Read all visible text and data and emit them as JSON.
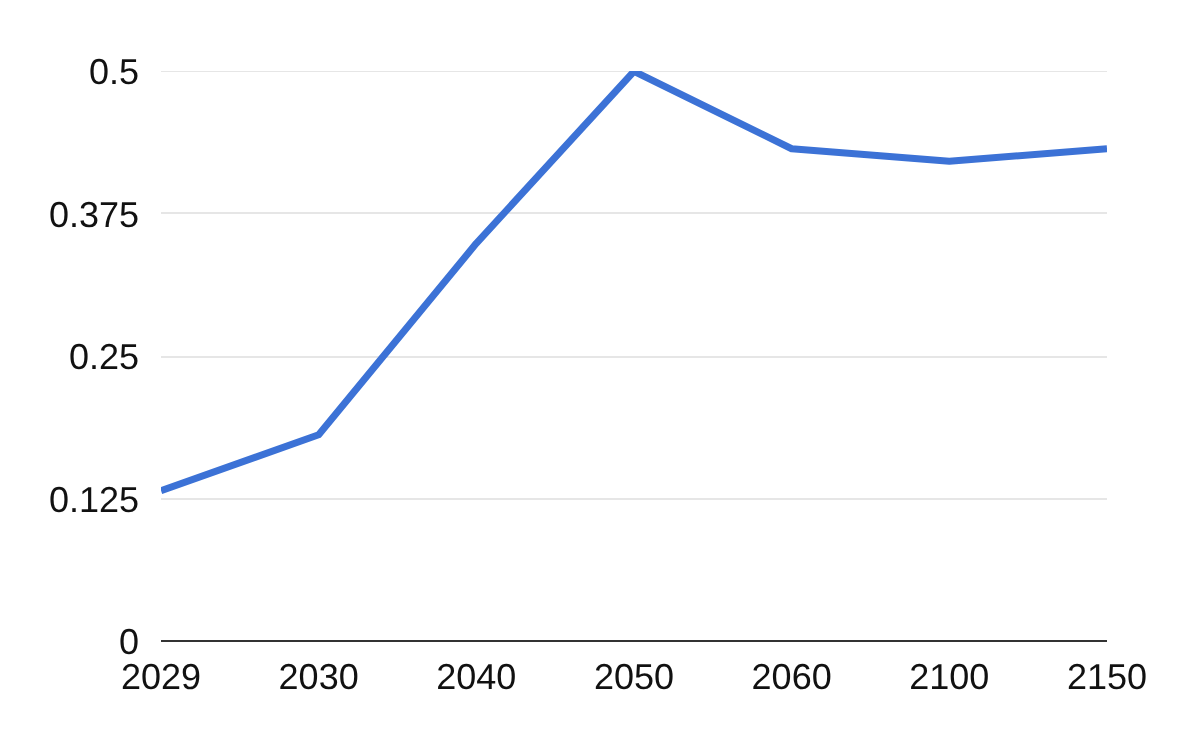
{
  "chart_data": {
    "type": "line",
    "categories": [
      "2029",
      "2030",
      "2040",
      "2050",
      "2060",
      "2100",
      "2150"
    ],
    "series": [
      {
        "color": "#3c72d6",
        "values": [
          0.132,
          0.181,
          0.349,
          0.5,
          0.432,
          0.421,
          0.432
        ]
      }
    ],
    "ylim": [
      0,
      0.5
    ],
    "yticks": [
      0,
      0.125,
      0.25,
      0.375,
      0.5
    ],
    "grid": "y",
    "marker": "none",
    "line_style": "solid"
  }
}
